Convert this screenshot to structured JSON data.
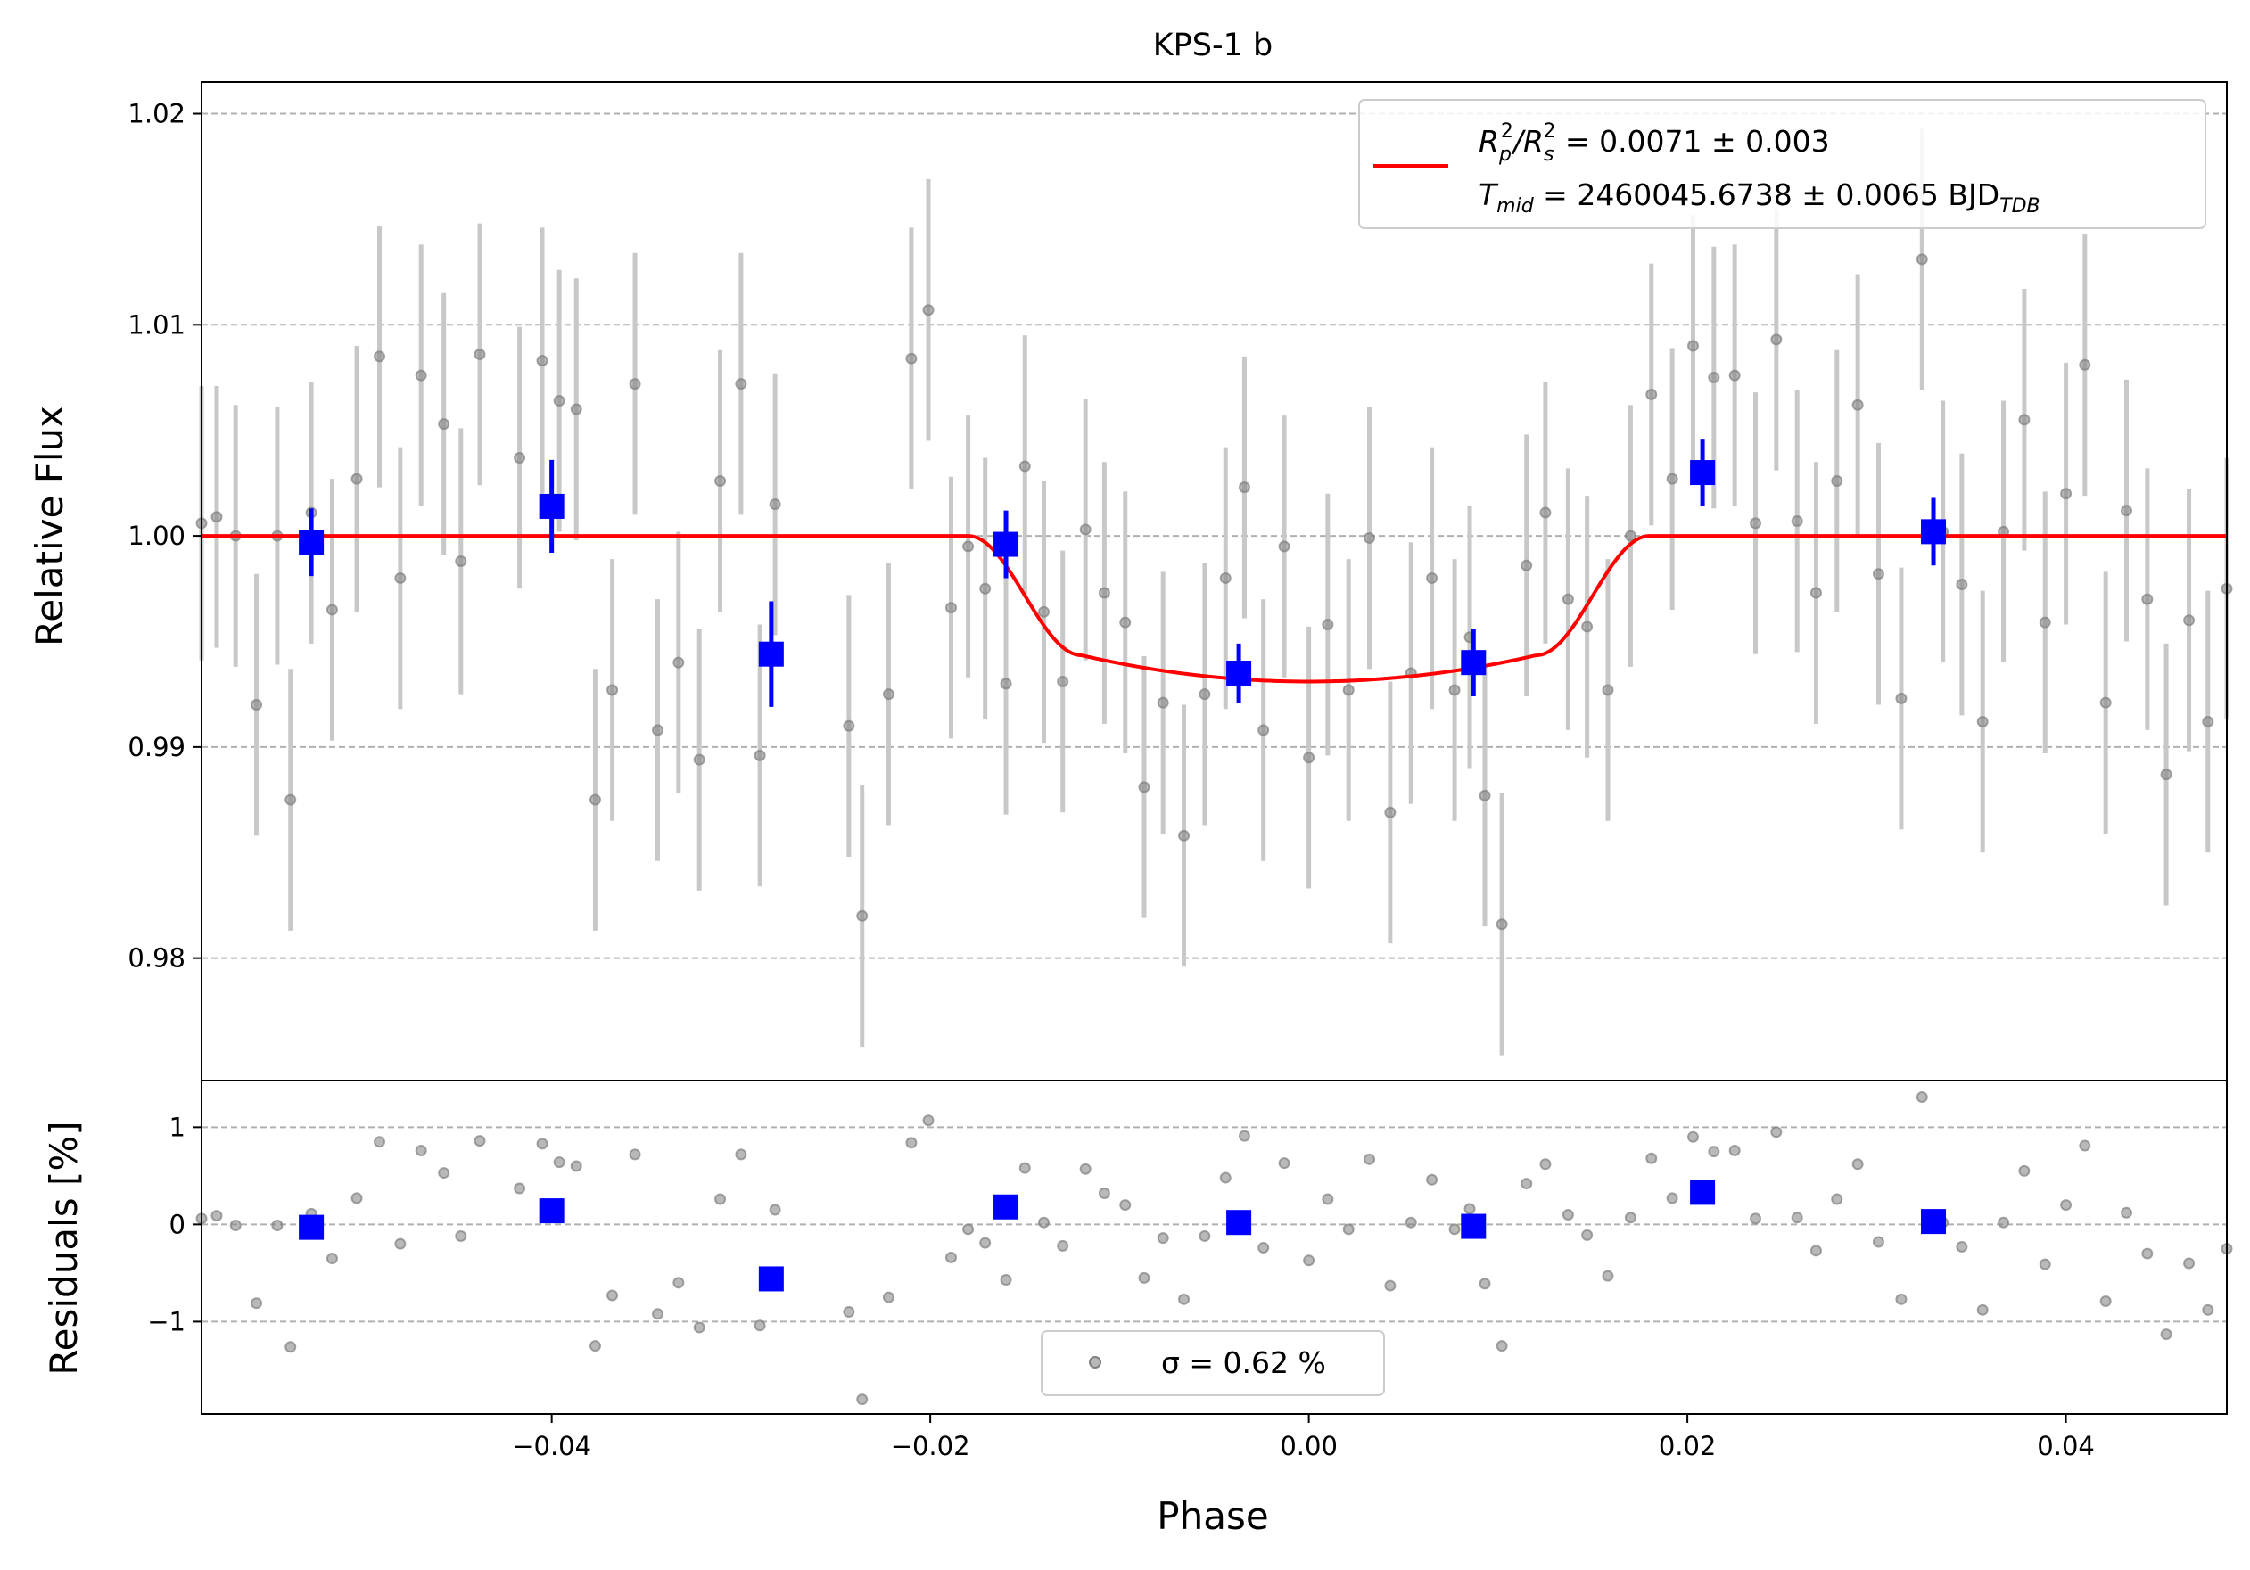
{
  "chart_data": {
    "type": "scatter",
    "title": "KPS-1 b",
    "xlabel": "Phase",
    "top_panel": {
      "ylabel": "Relative Flux",
      "xlim": [
        -0.0585,
        0.0485
      ],
      "ylim": [
        0.9742,
        1.0215
      ],
      "yticks": [
        "0.98",
        "0.99",
        "1.00",
        "1.01",
        "1.02"
      ],
      "ytick_values": [
        0.98,
        0.99,
        1.0,
        1.01,
        1.02
      ],
      "grid": "y dashed",
      "legend_position": "upper-right",
      "legend": {
        "line1": {
          "prefix": "R",
          "s1": "p",
          "e1": "2",
          "mid": "/R",
          "s2": "s",
          "e2": "2",
          "value": " = 0.0071 ± 0.003"
        },
        "line2": {
          "prefix": "T",
          "sub": "mid",
          "value": " = 2460045.6738 ± 0.0065 BJD",
          "unit_sub": "TDB"
        }
      },
      "colors": {
        "data": "#808080",
        "error": "#c8c8c8",
        "binned": "#0000ff",
        "model": "#ff0000"
      },
      "raw_points": [
        [
          -0.0585,
          1.0006,
          0.0065
        ],
        [
          -0.0577,
          1.0009,
          0.0062
        ],
        [
          -0.0567,
          1.0,
          0.0062
        ],
        [
          -0.0556,
          0.992,
          0.0062
        ],
        [
          -0.0545,
          1.0,
          0.0061
        ],
        [
          -0.0538,
          0.9875,
          0.0062
        ],
        [
          -0.0527,
          1.0011,
          0.0062
        ],
        [
          -0.0516,
          0.9965,
          0.0062
        ],
        [
          -0.0503,
          1.0027,
          0.0063
        ],
        [
          -0.0491,
          1.0085,
          0.0062
        ],
        [
          -0.048,
          0.998,
          0.0062
        ],
        [
          -0.0469,
          1.0076,
          0.0062
        ],
        [
          -0.0457,
          1.0053,
          0.0062
        ],
        [
          -0.0448,
          0.9988,
          0.0063
        ],
        [
          -0.0438,
          1.0086,
          0.0062
        ],
        [
          -0.0417,
          1.0037,
          0.0062
        ],
        [
          -0.0405,
          1.0083,
          0.0063
        ],
        [
          -0.0396,
          1.0064,
          0.0062
        ],
        [
          -0.0387,
          1.006,
          0.0062
        ],
        [
          -0.0377,
          0.9875,
          0.0062
        ],
        [
          -0.0368,
          0.9927,
          0.0062
        ],
        [
          -0.0356,
          1.0072,
          0.0062
        ],
        [
          -0.0344,
          0.9908,
          0.0062
        ],
        [
          -0.0333,
          0.994,
          0.0062
        ],
        [
          -0.0322,
          0.9894,
          0.0062
        ],
        [
          -0.0311,
          1.0026,
          0.0062
        ],
        [
          -0.03,
          1.0072,
          0.0062
        ],
        [
          -0.029,
          0.9896,
          0.0062
        ],
        [
          -0.0282,
          1.0015,
          0.0062
        ],
        [
          -0.0243,
          0.991,
          0.0062
        ],
        [
          -0.0236,
          0.982,
          0.0062
        ],
        [
          -0.0222,
          0.9925,
          0.0062
        ],
        [
          -0.021,
          1.0084,
          0.0062
        ],
        [
          -0.0201,
          1.0107,
          0.0062
        ],
        [
          -0.0189,
          0.9966,
          0.0062
        ],
        [
          -0.018,
          0.9995,
          0.0062
        ],
        [
          -0.0171,
          0.9975,
          0.0062
        ],
        [
          -0.016,
          0.993,
          0.0062
        ],
        [
          -0.015,
          1.0033,
          0.0062
        ],
        [
          -0.014,
          0.9964,
          0.0062
        ],
        [
          -0.013,
          0.9931,
          0.0062
        ],
        [
          -0.0118,
          1.0003,
          0.0062
        ],
        [
          -0.0108,
          0.9973,
          0.0062
        ],
        [
          -0.0097,
          0.9959,
          0.0062
        ],
        [
          -0.0087,
          0.9881,
          0.0062
        ],
        [
          -0.0077,
          0.9921,
          0.0062
        ],
        [
          -0.0066,
          0.9858,
          0.0062
        ],
        [
          -0.0055,
          0.9925,
          0.0062
        ],
        [
          -0.0044,
          0.998,
          0.0062
        ],
        [
          -0.0034,
          1.0023,
          0.0062
        ],
        [
          -0.0024,
          0.9908,
          0.0062
        ],
        [
          -0.0013,
          0.9995,
          0.0062
        ],
        [
          0.0,
          0.9895,
          0.0062
        ],
        [
          0.001,
          0.9958,
          0.0062
        ],
        [
          0.0021,
          0.9927,
          0.0062
        ],
        [
          0.0032,
          0.9999,
          0.0062
        ],
        [
          0.0043,
          0.9869,
          0.0062
        ],
        [
          0.0054,
          0.9935,
          0.0062
        ],
        [
          0.0065,
          0.998,
          0.0062
        ],
        [
          0.0077,
          0.9927,
          0.0062
        ],
        [
          0.0085,
          0.9952,
          0.0062
        ],
        [
          0.0093,
          0.9877,
          0.0062
        ],
        [
          0.0102,
          0.9816,
          0.0062
        ],
        [
          0.0115,
          0.9986,
          0.0062
        ],
        [
          0.0125,
          1.0011,
          0.0062
        ],
        [
          0.0137,
          0.997,
          0.0062
        ],
        [
          0.0147,
          0.9957,
          0.0062
        ],
        [
          0.0158,
          0.9927,
          0.0062
        ],
        [
          0.017,
          1.0,
          0.0062
        ],
        [
          0.0181,
          1.0067,
          0.0062
        ],
        [
          0.0192,
          1.0027,
          0.0062
        ],
        [
          0.0203,
          1.009,
          0.0062
        ],
        [
          0.0214,
          1.0075,
          0.0062
        ],
        [
          0.0225,
          1.0076,
          0.0062
        ],
        [
          0.0236,
          1.0006,
          0.0062
        ],
        [
          0.0247,
          1.0093,
          0.0062
        ],
        [
          0.0258,
          1.0007,
          0.0062
        ],
        [
          0.0268,
          0.9973,
          0.0062
        ],
        [
          0.0279,
          1.0026,
          0.0062
        ],
        [
          0.029,
          1.0062,
          0.0062
        ],
        [
          0.0301,
          0.9982,
          0.0062
        ],
        [
          0.0313,
          0.9923,
          0.0062
        ],
        [
          0.0324,
          1.0131,
          0.0062
        ],
        [
          0.0335,
          1.0002,
          0.0062
        ],
        [
          0.0345,
          0.9977,
          0.0062
        ],
        [
          0.0356,
          0.9912,
          0.0062
        ],
        [
          0.0367,
          1.0002,
          0.0062
        ],
        [
          0.0378,
          1.0055,
          0.0062
        ],
        [
          0.0389,
          0.9959,
          0.0062
        ],
        [
          0.04,
          1.002,
          0.0062
        ],
        [
          0.041,
          1.0081,
          0.0062
        ],
        [
          0.0421,
          0.9921,
          0.0062
        ],
        [
          0.0432,
          1.0012,
          0.0062
        ],
        [
          0.0443,
          0.997,
          0.0062
        ],
        [
          0.0453,
          0.9887,
          0.0062
        ],
        [
          0.0465,
          0.996,
          0.0062
        ],
        [
          0.0475,
          0.9912,
          0.0062
        ],
        [
          0.0485,
          0.9975,
          0.0062
        ]
      ],
      "binned_points": [
        [
          -0.0527,
          0.9997,
          0.0016
        ],
        [
          -0.04,
          1.0014,
          0.0022
        ],
        [
          -0.0284,
          0.9944,
          0.0025
        ],
        [
          -0.016,
          0.9996,
          0.0016
        ],
        [
          -0.0037,
          0.9935,
          0.0014
        ],
        [
          0.0087,
          0.994,
          0.0016
        ],
        [
          0.0208,
          1.003,
          0.0016
        ],
        [
          0.033,
          1.0002,
          0.0016
        ]
      ],
      "model": {
        "depth": 0.0069,
        "t1": -0.018,
        "t2": -0.012,
        "t3": 0.012,
        "t4": 0.018
      }
    },
    "bottom_panel": {
      "ylabel": "Residuals [%]",
      "ylim": [
        -1.95,
        1.48
      ],
      "yticks": [
        "−1",
        "0",
        "1"
      ],
      "ytick_values": [
        -1,
        0,
        1
      ],
      "grid": "y dashed",
      "legend_position": "lower-center",
      "legend_label": "σ = 0.62 %",
      "raw_residuals": [
        [
          -0.0585,
          0.06
        ],
        [
          -0.0577,
          0.09
        ],
        [
          -0.0567,
          -0.01
        ],
        [
          -0.0556,
          -0.81
        ],
        [
          -0.0545,
          -0.01
        ],
        [
          -0.0538,
          -1.26
        ],
        [
          -0.0527,
          0.11
        ],
        [
          -0.0516,
          -0.35
        ],
        [
          -0.0503,
          0.27
        ],
        [
          -0.0491,
          0.85
        ],
        [
          -0.048,
          -0.2
        ],
        [
          -0.0469,
          0.76
        ],
        [
          -0.0457,
          0.53
        ],
        [
          -0.0448,
          -0.12
        ],
        [
          -0.0438,
          0.86
        ],
        [
          -0.0417,
          0.37
        ],
        [
          -0.0405,
          0.83
        ],
        [
          -0.0396,
          0.64
        ],
        [
          -0.0387,
          0.6
        ],
        [
          -0.0377,
          -1.25
        ],
        [
          -0.0368,
          -0.73
        ],
        [
          -0.0356,
          0.72
        ],
        [
          -0.0344,
          -0.92
        ],
        [
          -0.0333,
          -0.6
        ],
        [
          -0.0322,
          -1.06
        ],
        [
          -0.0311,
          0.26
        ],
        [
          -0.03,
          0.72
        ],
        [
          -0.029,
          -1.04
        ],
        [
          -0.0282,
          0.15
        ],
        [
          -0.0243,
          -0.9
        ],
        [
          -0.0236,
          -1.8
        ],
        [
          -0.0222,
          -0.75
        ],
        [
          -0.021,
          0.84
        ],
        [
          -0.0201,
          1.07
        ],
        [
          -0.0189,
          -0.34
        ],
        [
          -0.018,
          -0.05
        ],
        [
          -0.0171,
          -0.19
        ],
        [
          -0.016,
          -0.57
        ],
        [
          -0.015,
          0.58
        ],
        [
          -0.014,
          0.02
        ],
        [
          -0.013,
          -0.22
        ],
        [
          -0.0118,
          0.57
        ],
        [
          -0.0108,
          0.32
        ],
        [
          -0.0097,
          0.2
        ],
        [
          -0.0087,
          -0.55
        ],
        [
          -0.0077,
          -0.14
        ],
        [
          -0.0066,
          -0.77
        ],
        [
          -0.0055,
          -0.12
        ],
        [
          -0.0044,
          0.48
        ],
        [
          -0.0034,
          0.91
        ],
        [
          -0.0024,
          -0.24
        ],
        [
          -0.0013,
          0.63
        ],
        [
          0.0,
          -0.37
        ],
        [
          0.001,
          0.26
        ],
        [
          0.0021,
          -0.05
        ],
        [
          0.0032,
          0.67
        ],
        [
          0.0043,
          -0.63
        ],
        [
          0.0054,
          0.02
        ],
        [
          0.0065,
          0.46
        ],
        [
          0.0077,
          -0.05
        ],
        [
          0.0085,
          0.16
        ],
        [
          0.0093,
          -0.61
        ],
        [
          0.0102,
          -1.25
        ],
        [
          0.0115,
          0.42
        ],
        [
          0.0125,
          0.62
        ],
        [
          0.0137,
          0.1
        ],
        [
          0.0147,
          -0.11
        ],
        [
          0.0158,
          -0.53
        ],
        [
          0.017,
          0.07
        ],
        [
          0.0181,
          0.68
        ],
        [
          0.0192,
          0.27
        ],
        [
          0.0203,
          0.9
        ],
        [
          0.0214,
          0.75
        ],
        [
          0.0225,
          0.76
        ],
        [
          0.0236,
          0.06
        ],
        [
          0.0247,
          0.95
        ],
        [
          0.0258,
          0.07
        ],
        [
          0.0268,
          -0.27
        ],
        [
          0.0279,
          0.26
        ],
        [
          0.029,
          0.62
        ],
        [
          0.0301,
          -0.18
        ],
        [
          0.0313,
          -0.77
        ],
        [
          0.0324,
          1.31
        ],
        [
          0.0335,
          0.02
        ],
        [
          0.0345,
          -0.23
        ],
        [
          0.0356,
          -0.88
        ],
        [
          0.0367,
          0.02
        ],
        [
          0.0378,
          0.55
        ],
        [
          0.0389,
          -0.41
        ],
        [
          0.04,
          0.2
        ],
        [
          0.041,
          0.81
        ],
        [
          0.0421,
          -0.79
        ],
        [
          0.0432,
          0.12
        ],
        [
          0.0443,
          -0.3
        ],
        [
          0.0453,
          -1.13
        ],
        [
          0.0465,
          -0.4
        ],
        [
          0.0475,
          -0.88
        ],
        [
          0.0485,
          -0.25
        ]
      ],
      "binned_residuals": [
        [
          -0.0527,
          -0.03
        ],
        [
          -0.04,
          0.14
        ],
        [
          -0.0284,
          -0.56
        ],
        [
          -0.016,
          0.18
        ],
        [
          -0.0037,
          0.02
        ],
        [
          0.0087,
          -0.02
        ],
        [
          0.0208,
          0.33
        ],
        [
          0.033,
          0.03
        ]
      ]
    },
    "xticks": [
      "−0.04",
      "−0.02",
      "0.00",
      "0.02",
      "0.04"
    ],
    "xtick_values": [
      -0.04,
      -0.02,
      0.0,
      0.02,
      0.04
    ]
  }
}
